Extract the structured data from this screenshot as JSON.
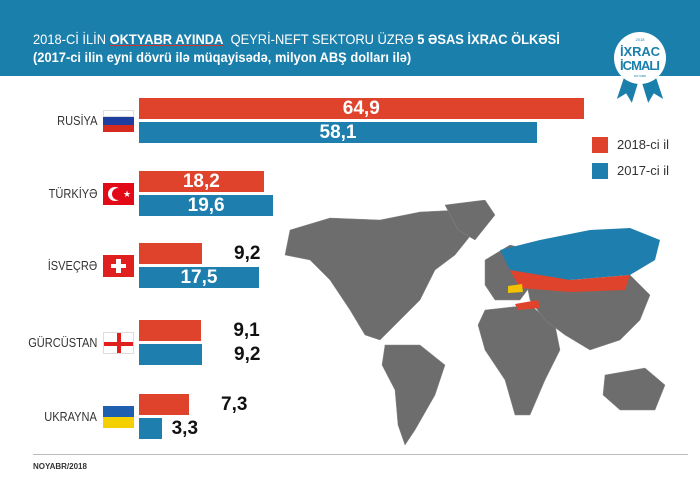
{
  "header": {
    "line1_prefix": "2018-Cİ İLİN ",
    "line1_month": "OKTYABR AYINDA",
    "line1_mid": "  QEYRİ-NEFT SEKTORU ÜZRƏ ",
    "line1_bold": "5 ƏSAS İXRAC ÖLKƏSİ",
    "line2": "(2017-ci ilin eyni dövrü ilə müqayisədə, milyon ABŞ dolları ilə)"
  },
  "badge": {
    "line1": "İXRAC",
    "line2": "İCMALI",
    "year": "2018",
    "month": "NOYABR"
  },
  "footer": "NOYABR/2018",
  "colors": {
    "2018": "#e0432c",
    "2017": "#1e7fae",
    "header": "#1b7fab",
    "map": "#6b6b6b"
  },
  "chart_data": {
    "type": "bar",
    "orientation": "horizontal",
    "title": "2018-Cİ İLİN OKTYABR AYINDA QEYRİ-NEFT SEKTORU ÜZRƏ 5 ƏSAS İXRAC ÖLKƏSİ",
    "subtitle": "(2017-ci ilin eyni dövrü ilə müqayisədə, milyon ABŞ dolları ilə)",
    "categories": [
      "RUSİYA",
      "TÜRKİYƏ",
      "İSVEÇRƏ",
      "GÜRCÜSTAN",
      "UKRAYNA"
    ],
    "flags": [
      "russia-flag",
      "turkey-flag",
      "switzerland-flag",
      "georgia-flag",
      "ukraine-flag"
    ],
    "series": [
      {
        "name": "2018-ci il",
        "values": [
          64.9,
          18.2,
          9.2,
          9.1,
          7.3
        ],
        "labels": [
          "64,9",
          "18,2",
          "9,2",
          "9,1",
          "7,3"
        ]
      },
      {
        "name": "2017-ci il",
        "values": [
          58.1,
          19.6,
          17.5,
          9.2,
          3.3
        ],
        "labels": [
          "58,1",
          "19,6",
          "17,5",
          "9,2",
          "3,3"
        ]
      }
    ],
    "legend": "right",
    "grid": false
  }
}
